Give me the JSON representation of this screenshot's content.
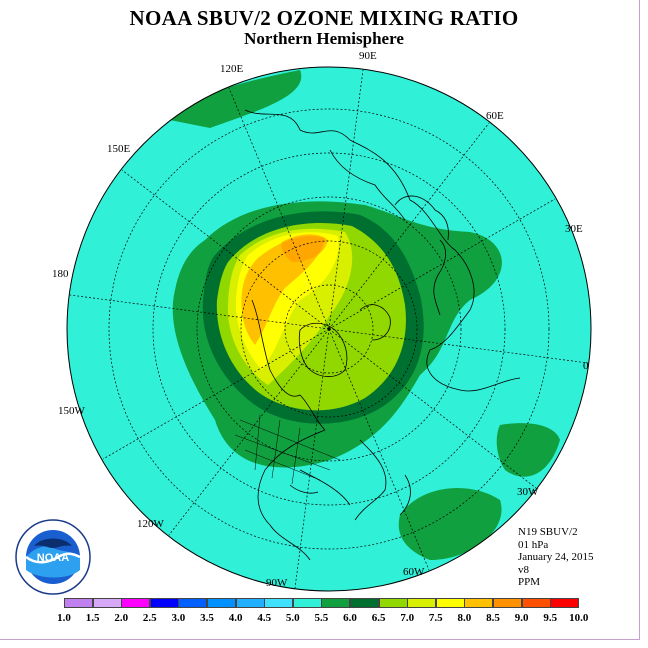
{
  "title": "NOAA SBUV/2 OZONE MIXING RATIO",
  "subtitle": "Northern Hemisphere",
  "longitude_labels": [
    {
      "id": "90e",
      "text": "90E"
    },
    {
      "id": "60e",
      "text": "60E"
    },
    {
      "id": "30e",
      "text": "30E"
    },
    {
      "id": "0",
      "text": "0"
    },
    {
      "id": "30w",
      "text": "30W"
    },
    {
      "id": "60w",
      "text": "60W"
    },
    {
      "id": "90w",
      "text": "90W"
    },
    {
      "id": "120w",
      "text": "120W"
    },
    {
      "id": "150w",
      "text": "150W"
    },
    {
      "id": "180",
      "text": "180"
    },
    {
      "id": "150e",
      "text": "150E"
    },
    {
      "id": "120e",
      "text": "120E"
    }
  ],
  "info": {
    "satellite": "N19 SBUV/2",
    "level": "01 hPa",
    "date": "January 24, 2015",
    "version": "v8",
    "units": "PPM"
  },
  "logo": {
    "text": "NOAA"
  },
  "colorbar": {
    "ticks": [
      "1.0",
      "1.5",
      "2.0",
      "2.5",
      "3.0",
      "3.5",
      "4.0",
      "4.5",
      "5.0",
      "5.5",
      "6.0",
      "6.5",
      "7.0",
      "7.5",
      "8.0",
      "8.5",
      "9.0",
      "9.5",
      "10.0"
    ],
    "colors": [
      "#c080f0",
      "#d8a8f8",
      "#ff00ff",
      "#0000ff",
      "#0060ff",
      "#0090ff",
      "#20b0ff",
      "#40e0ff",
      "#30f0d8",
      "#10a040",
      "#007030",
      "#90d800",
      "#d8f000",
      "#ffff00",
      "#ffc000",
      "#ff9000",
      "#ff5000",
      "#ff0000",
      "#a06030"
    ]
  },
  "map": {
    "ocean_color": "#30f0d8",
    "contour_colors": [
      "#30f0d8",
      "#10a040",
      "#007030",
      "#90d800",
      "#d8f000",
      "#ffff00",
      "#ffc000",
      "#ff9000"
    ]
  }
}
